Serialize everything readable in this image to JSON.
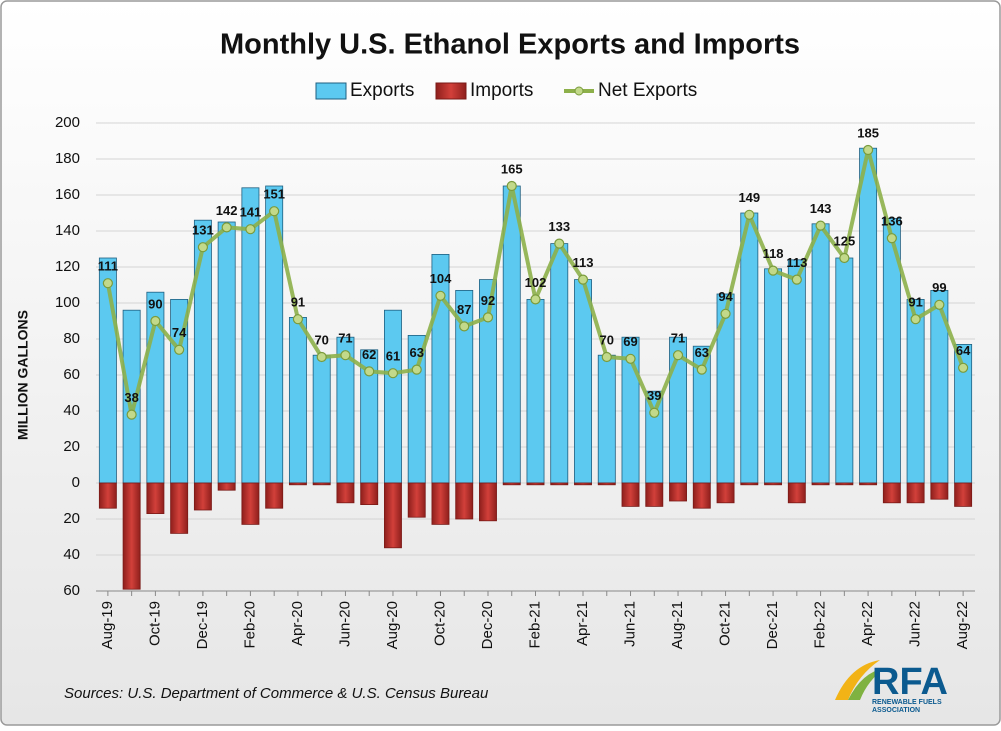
{
  "chart_data": {
    "type": "bar",
    "title": "Monthly U.S. Ethanol Exports and Imports",
    "y_label": "MILLION GALLONS",
    "source": "Sources: U.S. Department of Commerce & U.S. Census Bureau",
    "logo": {
      "text": "RFA",
      "subtitle": "RENEWABLE FUELS ASSOCIATION"
    },
    "categories": [
      "Aug-19",
      null,
      "Oct-19",
      null,
      "Dec-19",
      null,
      "Feb-20",
      null,
      "Apr-20",
      null,
      "Jun-20",
      null,
      "Aug-20",
      null,
      "Oct-20",
      null,
      "Dec-20",
      null,
      "Feb-21",
      null,
      "Apr-21",
      null,
      "Jun-21",
      null,
      "Aug-21",
      null,
      "Oct-21",
      null,
      "Dec-21",
      null,
      "Feb-22",
      null,
      "Apr-22",
      null,
      "Jun-22",
      null,
      "Aug-22"
    ],
    "series": [
      {
        "name": "Exports",
        "type": "bar",
        "color": "#5cc9f0",
        "values": [
          125,
          96,
          106,
          102,
          146,
          145,
          164,
          165,
          92,
          71,
          81,
          74,
          96,
          82,
          127,
          107,
          113,
          165,
          102,
          133,
          113,
          71,
          81,
          51,
          81,
          76,
          105,
          150,
          119,
          124,
          144,
          125,
          186,
          147,
          102,
          107,
          77
        ]
      },
      {
        "name": "Imports",
        "type": "bar",
        "color": "#c0302b",
        "values": [
          -14,
          -59,
          -17,
          -28,
          -15,
          -4,
          -23,
          -14,
          -1,
          -1,
          -11,
          -12,
          -36,
          -19,
          -23,
          -20,
          -21,
          -1,
          -1,
          -1,
          -1,
          -1,
          -13,
          -13,
          -10,
          -14,
          -11,
          -1,
          -1,
          -11,
          -1,
          -1,
          -1,
          -11,
          -11,
          -9,
          -13
        ]
      },
      {
        "name": "Net Exports",
        "type": "line",
        "color": "#8db04a",
        "values": [
          111,
          38,
          90,
          74,
          131,
          142,
          141,
          151,
          91,
          70,
          71,
          62,
          61,
          63,
          104,
          87,
          92,
          165,
          102,
          133,
          113,
          70,
          69,
          39,
          71,
          63,
          94,
          149,
          118,
          113,
          143,
          125,
          185,
          136,
          91,
          99,
          64
        ]
      }
    ],
    "ylim": [
      -60,
      200
    ],
    "yticks": [
      {
        "value": -60,
        "label": "60"
      },
      {
        "value": -40,
        "label": "40"
      },
      {
        "value": -20,
        "label": "20"
      },
      0,
      20,
      40,
      60,
      80,
      100,
      120,
      140,
      160,
      180,
      200
    ],
    "grid": true
  }
}
